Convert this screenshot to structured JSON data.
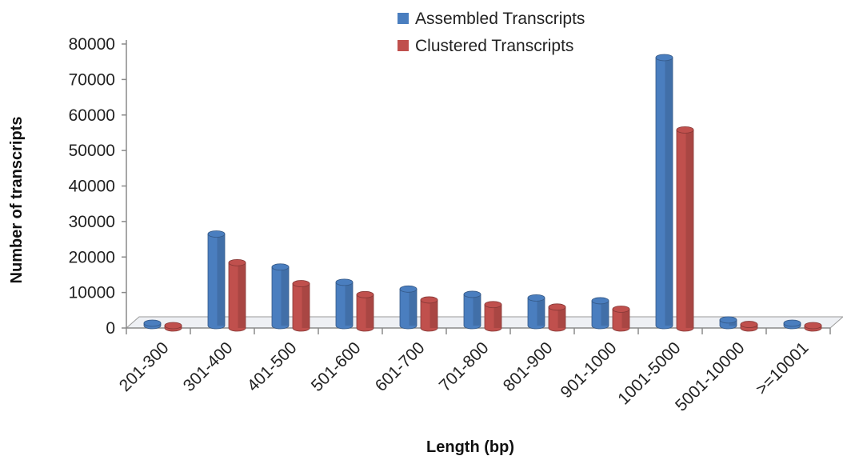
{
  "chart_data": {
    "type": "bar",
    "style": "3d-clustered-column",
    "categories": [
      "201-300",
      "301-400",
      "401-500",
      "501-600",
      "601-700",
      "701-800",
      "801-900",
      "901-1000",
      "1001-5000",
      "5001-10000",
      ">=10001"
    ],
    "series": [
      {
        "name": "Assembled Transcripts",
        "color": "#4a7ebf",
        "values": [
          200,
          25800,
          16500,
          12200,
          10300,
          8800,
          7800,
          7000,
          75500,
          1600,
          150
        ]
      },
      {
        "name": "Clustered Transcripts",
        "color": "#c0504d",
        "values": [
          150,
          18400,
          12500,
          9400,
          7900,
          6600,
          5900,
          5300,
          55800,
          1000,
          100
        ]
      }
    ],
    "xlabel": "Length (bp)",
    "ylabel": "Number of transcripts",
    "ylim": [
      0,
      80000
    ],
    "yticks": [
      "0",
      "10000",
      "20000",
      "30000",
      "40000",
      "50000",
      "60000",
      "70000",
      "80000"
    ],
    "grid": false,
    "legend_position": "top-center"
  }
}
